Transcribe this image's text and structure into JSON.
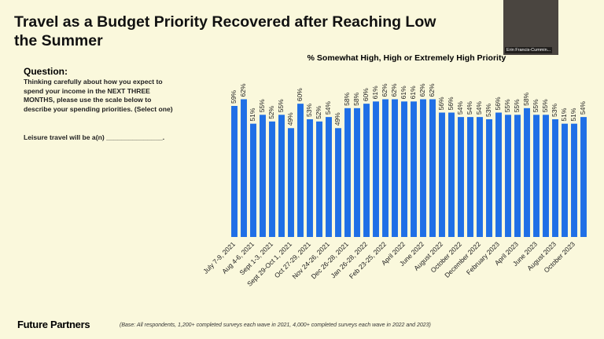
{
  "header": {
    "title_lines": [
      "Travel as a Budget Priority Recovered after Reaching Low",
      "the Summer"
    ]
  },
  "question": {
    "heading": "Question:",
    "text": "Thinking carefully about how you expect to spend your income in the NEXT THREE MONTHS, please use the scale below to describe your spending priorities.  (Select one)",
    "prompt": "Leisure travel will be a(n) _______________."
  },
  "presenter": {
    "name": "Erin Francis-Cummin..."
  },
  "footer": {
    "brand": "Future Partners",
    "note": "(Base: All respondents, 1,200+ completed surveys each wave in 2021, 4,000+ completed surveys each wave in 2022 and 2023)"
  },
  "chart_data": {
    "type": "bar",
    "title": "% Somewhat High, High or Extremely High Priority",
    "categories": [
      "July 7-9, 2021",
      null,
      "Aug 4-6, 2021",
      null,
      "Sept 1-3, 2021",
      null,
      "Sept 29-Oct 1, 2021",
      null,
      "Oct 27-29, 2021",
      null,
      "Nov 24-26, 2021",
      null,
      "Dec 26-28, 2021",
      null,
      "Jan 26-28, 2022",
      null,
      "Feb 23-25, 2022",
      null,
      "April 2022",
      null,
      "June 2022",
      null,
      "August 2022",
      null,
      "October 2022",
      null,
      "December 2022",
      null,
      "February 2023",
      null,
      "April 2023",
      null,
      "June 2023",
      null,
      "August 2023",
      null,
      "October 2023",
      null
    ],
    "values": [
      59,
      62,
      51,
      55,
      52,
      55,
      49,
      60,
      53,
      52,
      54,
      49,
      58,
      58,
      60,
      61,
      62,
      62,
      61,
      61,
      62,
      62,
      56,
      56,
      54,
      54,
      54,
      53,
      56,
      55,
      55,
      58,
      55,
      55,
      53,
      51,
      51,
      54
    ],
    "value_labels": [
      "59%",
      "62%",
      "51%",
      "55%",
      "52%",
      "55%",
      "49%",
      "60%",
      "53%",
      "52%",
      "54%",
      "49%",
      "58%",
      "58%",
      "60%",
      "61%",
      "62%",
      "62%",
      "61%",
      "61%",
      "62%",
      "62%",
      "56%",
      "56%",
      "54%",
      "54%",
      "54%",
      "53%",
      "56%",
      "55%",
      "55%",
      "58%",
      "55%",
      "55%",
      "53%",
      "51%",
      "51%",
      "54%"
    ],
    "color": "#1f6fe6",
    "ylim": [
      0,
      65
    ]
  }
}
